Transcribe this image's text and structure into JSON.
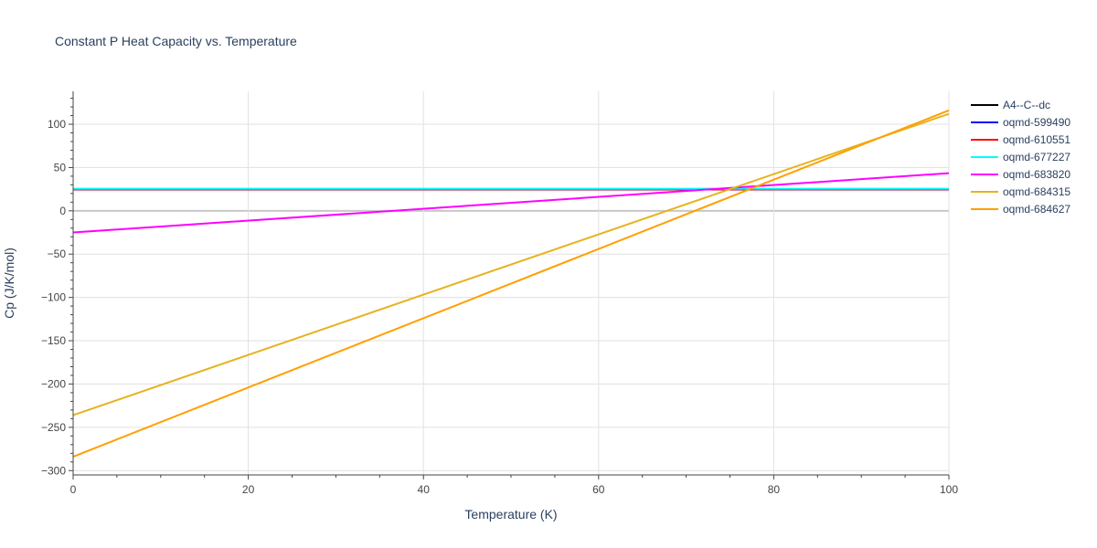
{
  "chart_data": {
    "type": "line",
    "title": "Constant P Heat Capacity vs. Temperature",
    "xlabel": "Temperature (K)",
    "ylabel": "Cp (J/K/mol)",
    "xlim": [
      0,
      100
    ],
    "ylim": [
      -305,
      138
    ],
    "xticks": [
      0,
      20,
      40,
      60,
      80,
      100
    ],
    "yticks": [
      -300,
      -250,
      -200,
      -150,
      -100,
      -50,
      0,
      50,
      100
    ],
    "grid": true,
    "legend_position": "top-right",
    "series": [
      {
        "name": "A4--C--dc",
        "color": "#000000",
        "x": [
          0,
          100
        ],
        "y": [
          24.6,
          24.6
        ]
      },
      {
        "name": "oqmd-599490",
        "color": "#0000ff",
        "x": [
          0,
          100
        ],
        "y": [
          24.7,
          24.7
        ]
      },
      {
        "name": "oqmd-610551",
        "color": "#ff0000",
        "x": [
          0,
          100
        ],
        "y": [
          24.8,
          24.8
        ]
      },
      {
        "name": "oqmd-677227",
        "color": "#00ffff",
        "x": [
          0,
          100
        ],
        "y": [
          25.5,
          25.5
        ]
      },
      {
        "name": "oqmd-683820",
        "color": "#ff00ff",
        "x": [
          0,
          100
        ],
        "y": [
          -25,
          43.5
        ]
      },
      {
        "name": "oqmd-684315",
        "color": "#e6b31e",
        "x": [
          0,
          100
        ],
        "y": [
          -236,
          112
        ]
      },
      {
        "name": "oqmd-684627",
        "color": "#ff9f00",
        "x": [
          0,
          100
        ],
        "y": [
          -284,
          116
        ]
      }
    ]
  }
}
